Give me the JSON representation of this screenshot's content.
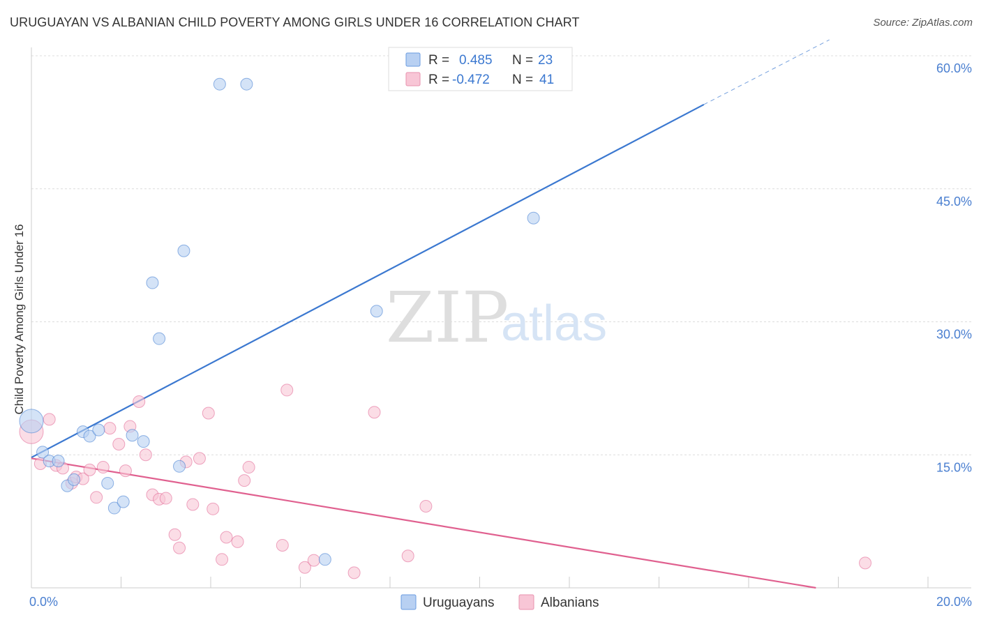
{
  "title": "URUGUAYAN VS ALBANIAN CHILD POVERTY AMONG GIRLS UNDER 16 CORRELATION CHART",
  "source": "Source: ZipAtlas.com",
  "watermark": {
    "zip": "ZIP",
    "atlas": "atlas"
  },
  "legend": {
    "rows": [
      {
        "r_label": "R =",
        "r_value": "0.485",
        "n_label": "N =",
        "n_value": "23",
        "fill": "#b8d0f2",
        "stroke": "#6a9be0"
      },
      {
        "r_label": "R =",
        "r_value": "-0.472",
        "n_label": "N =",
        "n_value": "41",
        "fill": "#f8c6d6",
        "stroke": "#e891ae"
      }
    ]
  },
  "bottom_legend": [
    {
      "label": "Uruguayans",
      "fill": "#b8d0f2",
      "stroke": "#6a9be0"
    },
    {
      "label": "Albanians",
      "fill": "#f8c6d6",
      "stroke": "#e891ae"
    }
  ],
  "chart_data": {
    "type": "scatter",
    "title": "URUGUAYAN VS ALBANIAN CHILD POVERTY AMONG GIRLS UNDER 16 CORRELATION CHART",
    "xlabel": "",
    "ylabel": "Child Poverty Among Girls Under 16",
    "xlim": [
      0,
      20
    ],
    "ylim": [
      0,
      60
    ],
    "x_tick_labels": [
      {
        "value": 0,
        "label": "0.0%"
      },
      {
        "value": 20,
        "label": "20.0%"
      }
    ],
    "y_tick_labels": [
      {
        "value": 15,
        "label": "15.0%"
      },
      {
        "value": 30,
        "label": "30.0%"
      },
      {
        "value": 45,
        "label": "45.0%"
      },
      {
        "value": 60,
        "label": "60.0%"
      }
    ],
    "grid": true,
    "series": [
      {
        "name": "Uruguayans",
        "color": "#3b78d0",
        "fill": "#b8d0f2",
        "points": [
          {
            "x": 0.0,
            "y": 18.8,
            "big": true
          },
          {
            "x": 0.25,
            "y": 15.3
          },
          {
            "x": 0.4,
            "y": 14.3
          },
          {
            "x": 0.6,
            "y": 14.3
          },
          {
            "x": 0.8,
            "y": 11.5
          },
          {
            "x": 0.95,
            "y": 12.2
          },
          {
            "x": 1.15,
            "y": 17.6
          },
          {
            "x": 1.3,
            "y": 17.1
          },
          {
            "x": 1.5,
            "y": 17.8
          },
          {
            "x": 1.7,
            "y": 11.8
          },
          {
            "x": 1.85,
            "y": 9.0
          },
          {
            "x": 2.05,
            "y": 9.7
          },
          {
            "x": 2.25,
            "y": 17.2
          },
          {
            "x": 2.5,
            "y": 16.5
          },
          {
            "x": 2.7,
            "y": 34.4
          },
          {
            "x": 2.85,
            "y": 28.1
          },
          {
            "x": 3.3,
            "y": 13.7
          },
          {
            "x": 3.4,
            "y": 38.0
          },
          {
            "x": 4.2,
            "y": 56.8
          },
          {
            "x": 4.8,
            "y": 56.8
          },
          {
            "x": 6.55,
            "y": 3.2
          },
          {
            "x": 7.7,
            "y": 31.2
          },
          {
            "x": 11.2,
            "y": 41.7
          }
        ],
        "trend": {
          "x0": 0,
          "y0": 14.7,
          "x1": 15.0,
          "y1": 54.5,
          "dash_to_x": 17.8,
          "dash_to_y": 61.8
        }
      },
      {
        "name": "Albanians",
        "color": "#e0608f",
        "fill": "#f8c6d6",
        "points": [
          {
            "x": 0.0,
            "y": 17.6,
            "big": true
          },
          {
            "x": 0.2,
            "y": 14.0
          },
          {
            "x": 0.4,
            "y": 19.0
          },
          {
            "x": 0.55,
            "y": 13.8
          },
          {
            "x": 0.7,
            "y": 13.5
          },
          {
            "x": 0.9,
            "y": 11.8
          },
          {
            "x": 1.0,
            "y": 12.5
          },
          {
            "x": 1.15,
            "y": 12.3
          },
          {
            "x": 1.3,
            "y": 13.3
          },
          {
            "x": 1.45,
            "y": 10.2
          },
          {
            "x": 1.6,
            "y": 13.6
          },
          {
            "x": 1.75,
            "y": 18.0
          },
          {
            "x": 1.95,
            "y": 16.2
          },
          {
            "x": 2.1,
            "y": 13.2
          },
          {
            "x": 2.2,
            "y": 18.2
          },
          {
            "x": 2.4,
            "y": 21.0
          },
          {
            "x": 2.55,
            "y": 15.0
          },
          {
            "x": 2.7,
            "y": 10.5
          },
          {
            "x": 2.85,
            "y": 10.0
          },
          {
            "x": 3.0,
            "y": 10.1
          },
          {
            "x": 3.2,
            "y": 6.0
          },
          {
            "x": 3.3,
            "y": 4.5
          },
          {
            "x": 3.45,
            "y": 14.2
          },
          {
            "x": 3.6,
            "y": 9.4
          },
          {
            "x": 3.75,
            "y": 14.6
          },
          {
            "x": 3.95,
            "y": 19.7
          },
          {
            "x": 4.05,
            "y": 8.9
          },
          {
            "x": 4.25,
            "y": 3.2
          },
          {
            "x": 4.35,
            "y": 5.7
          },
          {
            "x": 4.6,
            "y": 5.2
          },
          {
            "x": 4.75,
            "y": 12.1
          },
          {
            "x": 4.85,
            "y": 13.6
          },
          {
            "x": 5.6,
            "y": 4.8
          },
          {
            "x": 5.7,
            "y": 22.3
          },
          {
            "x": 6.1,
            "y": 2.3
          },
          {
            "x": 6.3,
            "y": 3.1
          },
          {
            "x": 7.2,
            "y": 1.7
          },
          {
            "x": 7.65,
            "y": 19.8
          },
          {
            "x": 8.4,
            "y": 3.6
          },
          {
            "x": 8.8,
            "y": 9.2
          },
          {
            "x": 18.6,
            "y": 2.8
          }
        ],
        "trend": {
          "x0": 0,
          "y0": 14.6,
          "x1": 17.5,
          "y1": 0.0
        }
      }
    ]
  }
}
